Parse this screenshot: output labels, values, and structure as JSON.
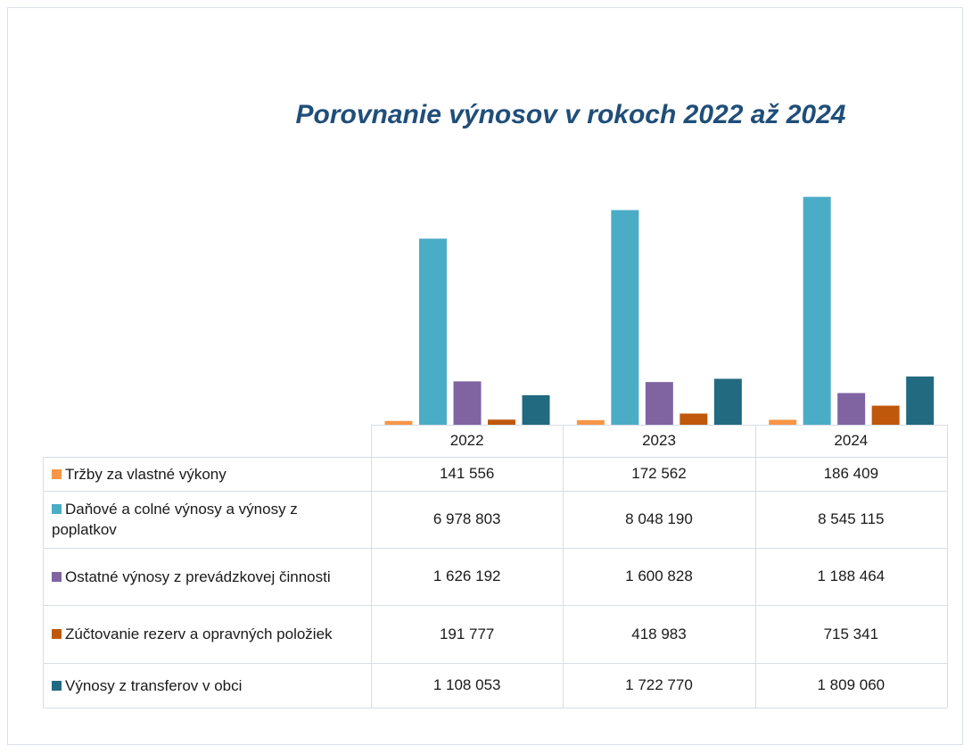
{
  "chart_data": {
    "type": "bar",
    "title": "Porovnanie výnosov v rokoch 2022 až 2024",
    "categories": [
      "2022",
      "2023",
      "2024"
    ],
    "ylim": [
      0,
      9000000
    ],
    "series": [
      {
        "name": "Tržby za vlastné výkony",
        "color": "#f79646",
        "values": [
          141556,
          172562,
          186409
        ],
        "value_labels": [
          "141 556",
          "172 562",
          "186 409"
        ]
      },
      {
        "name": "Daňové a colné výnosy  a výnosy z poplatkov",
        "color": "#4bacc6",
        "values": [
          6978803,
          8048190,
          8545115
        ],
        "value_labels": [
          "6 978 803",
          "8 048 190",
          "8 545 115"
        ]
      },
      {
        "name": "Ostatné výnosy z prevádzkovej činnosti",
        "color": "#8064a2",
        "values": [
          1626192,
          1600828,
          1188464
        ],
        "value_labels": [
          "1 626 192",
          "1 600 828",
          "1 188 464"
        ]
      },
      {
        "name": "Zúčtovanie rezerv a opravných položiek",
        "color": "#c0580c",
        "values": [
          191777,
          418983,
          715341
        ],
        "value_labels": [
          "191 777",
          "418 983",
          "715 341"
        ]
      },
      {
        "name": "Výnosy z transferov v obci",
        "color": "#226a80",
        "values": [
          1108053,
          1722770,
          1809060
        ],
        "value_labels": [
          "1 108 053",
          "1 722 770",
          "1 809 060"
        ]
      }
    ]
  }
}
